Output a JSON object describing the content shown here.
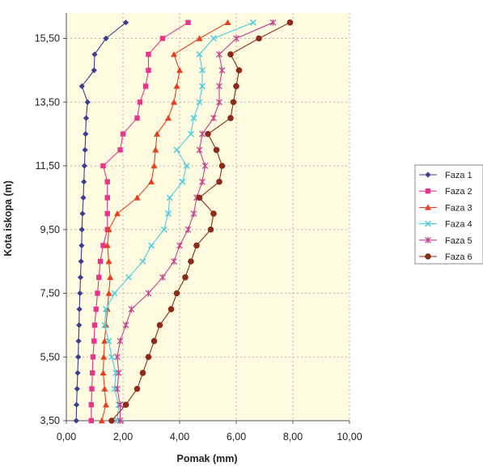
{
  "chart_data": {
    "type": "line",
    "xlabel": "Pomak (mm)",
    "ylabel": "Kota iskopa (m)",
    "xlim": [
      0,
      10
    ],
    "ylim": [
      3.5,
      16.3
    ],
    "x_ticks": [
      "0,00",
      "2,00",
      "4,00",
      "6,00",
      "8,00",
      "10,00"
    ],
    "y_ticks": [
      "3,50",
      "5,50",
      "7,50",
      "9,50",
      "11,50",
      "13,50",
      "15,50"
    ],
    "grid": true,
    "legend": "right",
    "colors": {
      "plot_background": "#fffbe0",
      "grid": "#b5b5b5"
    },
    "y_values": [
      3.5,
      4.0,
      4.5,
      5.0,
      5.5,
      6.0,
      6.5,
      7.0,
      7.5,
      8.0,
      8.5,
      9.0,
      9.5,
      10.0,
      10.5,
      11.0,
      11.5,
      12.0,
      12.5,
      13.0,
      13.5,
      14.0,
      14.5,
      15.0,
      15.5,
      16.0
    ],
    "series": [
      {
        "name": "Faza 1",
        "color": "#3d3d8f",
        "marker": "diamond",
        "x": [
          0.35,
          0.36,
          0.38,
          0.4,
          0.42,
          0.43,
          0.45,
          0.46,
          0.48,
          0.5,
          0.52,
          0.54,
          0.55,
          0.57,
          0.6,
          0.62,
          0.64,
          0.66,
          0.68,
          0.7,
          0.75,
          0.55,
          0.98,
          1.0,
          1.4,
          2.1
        ]
      },
      {
        "name": "Faza 2",
        "color": "#e8358c",
        "marker": "square",
        "x": [
          0.88,
          0.88,
          0.9,
          0.92,
          0.94,
          0.98,
          1.0,
          1.05,
          1.1,
          1.15,
          1.2,
          1.3,
          1.45,
          1.45,
          1.45,
          1.45,
          1.3,
          1.9,
          2.0,
          2.5,
          2.6,
          2.8,
          2.9,
          2.9,
          3.4,
          4.3
        ]
      },
      {
        "name": "Faza 3",
        "color": "#e63f1f",
        "marker": "triangle",
        "x": [
          1.25,
          1.4,
          1.35,
          1.3,
          1.32,
          1.35,
          1.4,
          1.45,
          1.5,
          1.55,
          1.5,
          1.45,
          1.5,
          1.8,
          2.5,
          3.0,
          3.1,
          3.15,
          3.2,
          3.6,
          3.8,
          3.9,
          4.0,
          3.8,
          4.7,
          5.7
        ]
      },
      {
        "name": "Faza 4",
        "color": "#4ecde0",
        "marker": "x",
        "x": [
          1.8,
          1.85,
          1.7,
          1.75,
          1.6,
          1.5,
          1.35,
          1.4,
          1.7,
          2.2,
          2.7,
          3.0,
          3.45,
          3.6,
          3.65,
          4.1,
          4.25,
          3.9,
          4.4,
          4.5,
          4.7,
          4.8,
          4.8,
          4.7,
          5.2,
          6.6
        ]
      },
      {
        "name": "Faza 5",
        "color": "#c6418e",
        "marker": "star",
        "x": [
          1.9,
          1.9,
          1.8,
          1.85,
          1.8,
          1.9,
          2.1,
          2.3,
          2.9,
          3.4,
          3.8,
          4.0,
          4.3,
          4.5,
          4.6,
          4.8,
          4.9,
          4.7,
          4.8,
          5.2,
          5.4,
          5.4,
          5.5,
          5.4,
          6.0,
          7.3
        ]
      },
      {
        "name": "Faza 6",
        "color": "#8c2a1c",
        "marker": "circle",
        "x": [
          1.6,
          2.1,
          2.5,
          2.7,
          2.9,
          3.1,
          3.3,
          3.7,
          3.9,
          4.2,
          4.4,
          4.6,
          5.1,
          5.2,
          4.7,
          5.4,
          5.5,
          5.3,
          5.0,
          5.8,
          5.9,
          6.0,
          6.1,
          5.8,
          6.8,
          7.9
        ]
      }
    ]
  }
}
